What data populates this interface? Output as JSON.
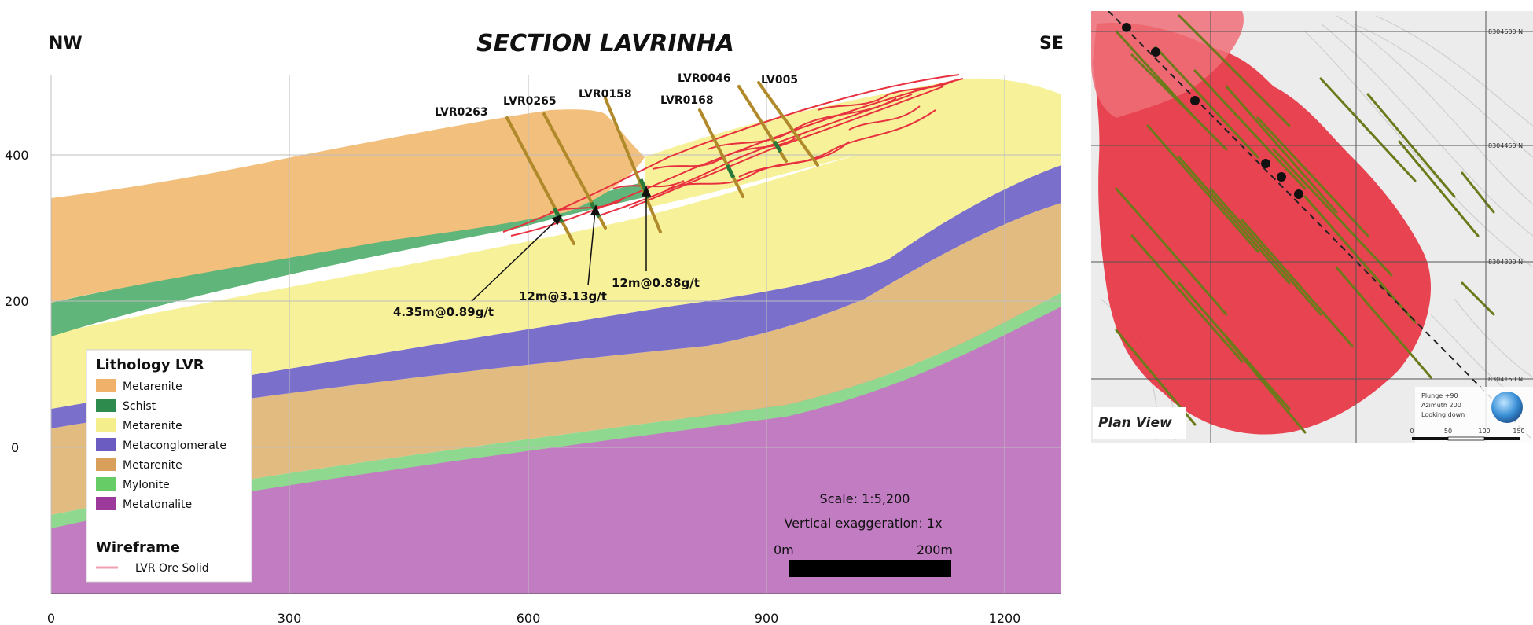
{
  "section": {
    "title": "SECTION LAVRINHA",
    "nw_label": "NW",
    "se_label": "SE",
    "x_ticks": [
      "0",
      "300",
      "600",
      "900",
      "1200"
    ],
    "y_ticks": [
      "400",
      "200",
      "0"
    ],
    "drillholes": [
      "LVR0263",
      "LVR0265",
      "LVR0158",
      "LVR0168",
      "LVR0046",
      "LV005"
    ],
    "intercepts": [
      "4.35m@0.89g/t",
      "12m@3.13g/t",
      "12m@0.88g/t"
    ]
  },
  "legend": {
    "title": "Lithology LVR",
    "items": [
      {
        "label": "Metarenite",
        "color": "#f0b26b"
      },
      {
        "label": "Schist",
        "color": "#2e8b4e"
      },
      {
        "label": "Metarenite",
        "color": "#f5ee8c"
      },
      {
        "label": "Metaconglomerate",
        "color": "#6b5cc2"
      },
      {
        "label": "Metarenite",
        "color": "#d9a05b"
      },
      {
        "label": "Mylonite",
        "color": "#66cc66"
      },
      {
        "label": "Metatonalite",
        "color": "#9c3a9c"
      }
    ],
    "wireframe_title": "Wireframe",
    "wireframe_item": "LVR Ore Solid",
    "wireframe_color": "#f0a0b0"
  },
  "scale": {
    "scale_text": "Scale: 1:5,200",
    "exaggeration_text": "Vertical exaggeration: 1x",
    "bar_start": "0m",
    "bar_end": "200m"
  },
  "plan": {
    "title": "Plan View",
    "coords": [
      "8304600 N",
      "8304450 N",
      "8304300 N",
      "8304150 N"
    ],
    "plunge": "Plunge +90",
    "azimuth": "Azimuth 200",
    "looking": "Looking down",
    "scale_ticks": [
      "0",
      "50",
      "100",
      "150"
    ]
  },
  "colors": {
    "ore_red": "#e8313f",
    "drill_olive": "#b08a2a",
    "grid": "#c8c8c8"
  }
}
